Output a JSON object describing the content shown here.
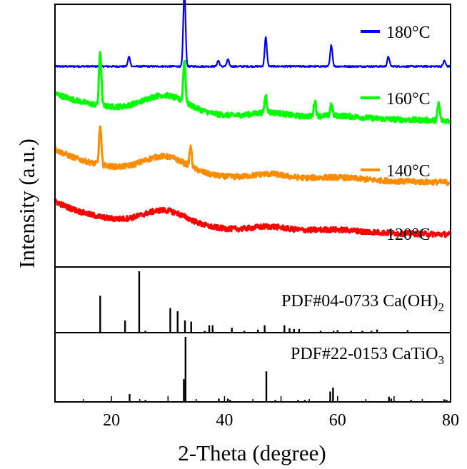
{
  "chart_data": {
    "type": "line",
    "xlabel": "2-Theta (degree)",
    "ylabel": "Intensity (a.u.)",
    "xlim": [
      10,
      80
    ],
    "x_ticks": [
      "20",
      "40",
      "60",
      "80"
    ],
    "grid": false,
    "legend_placement": "right, beside each curve",
    "series": [
      {
        "name": "180°C",
        "color": "#0000ff",
        "baseline": 1.0,
        "peaks": [
          [
            23.1,
            0.5
          ],
          [
            32.9,
            4.0
          ],
          [
            38.9,
            0.3
          ],
          [
            40.6,
            0.35
          ],
          [
            47.3,
            1.5
          ],
          [
            58.9,
            1.1
          ],
          [
            69.0,
            0.5
          ],
          [
            78.9,
            0.3
          ]
        ],
        "hump": 0
      },
      {
        "name": "160°C",
        "color": "#00ff00",
        "baseline": 3.4,
        "peaks": [
          [
            18.0,
            2.8
          ],
          [
            32.9,
            2.2
          ],
          [
            47.3,
            0.9
          ],
          [
            56.0,
            0.8
          ],
          [
            58.9,
            0.6
          ],
          [
            77.9,
            0.9
          ]
        ],
        "hump": 0.9
      },
      {
        "name": "140°C",
        "color": "#ff8c00",
        "baseline": 6.6,
        "peaks": [
          [
            18.0,
            2.0
          ],
          [
            34.0,
            1.0
          ]
        ],
        "hump": 0.9
      },
      {
        "name": "120°C",
        "color": "#ff0000",
        "baseline": 9.3,
        "peaks": [],
        "hump": 0.8
      }
    ],
    "references": [
      {
        "label": "PDF#04-0733 Ca(OH)",
        "subscript": "2",
        "lines": [
          [
            18.0,
            60
          ],
          [
            22.4,
            20
          ],
          [
            24.9,
            100
          ],
          [
            26.0,
            3
          ],
          [
            30.4,
            40
          ],
          [
            31.7,
            35
          ],
          [
            33.0,
            20
          ],
          [
            34.1,
            18
          ],
          [
            36.5,
            3
          ],
          [
            37.3,
            12
          ],
          [
            37.9,
            12
          ],
          [
            41.3,
            8
          ],
          [
            43.5,
            3
          ],
          [
            45.9,
            5
          ],
          [
            47.1,
            12
          ],
          [
            50.6,
            12
          ],
          [
            51.5,
            7
          ],
          [
            52.3,
            6
          ],
          [
            53.2,
            6
          ],
          [
            57.0,
            3
          ],
          [
            59.3,
            3
          ],
          [
            60.0,
            4
          ],
          [
            62.4,
            3
          ],
          [
            64.4,
            3
          ],
          [
            66.0,
            3
          ],
          [
            67.0,
            5
          ],
          [
            72.4,
            4
          ]
        ]
      },
      {
        "label": "PDF#22-0153 CaTiO",
        "subscript": "3",
        "lines": [
          [
            23.2,
            12
          ],
          [
            26.0,
            3
          ],
          [
            32.8,
            35
          ],
          [
            33.1,
            100
          ],
          [
            39.0,
            5
          ],
          [
            40.6,
            5
          ],
          [
            41.0,
            3
          ],
          [
            47.4,
            47
          ],
          [
            49.0,
            3
          ],
          [
            53.0,
            3
          ],
          [
            54.2,
            3
          ],
          [
            58.7,
            16
          ],
          [
            59.2,
            22
          ],
          [
            69.1,
            8
          ],
          [
            69.5,
            5
          ],
          [
            73.0,
            3
          ],
          [
            78.9,
            4
          ],
          [
            79.3,
            3
          ]
        ]
      }
    ]
  }
}
